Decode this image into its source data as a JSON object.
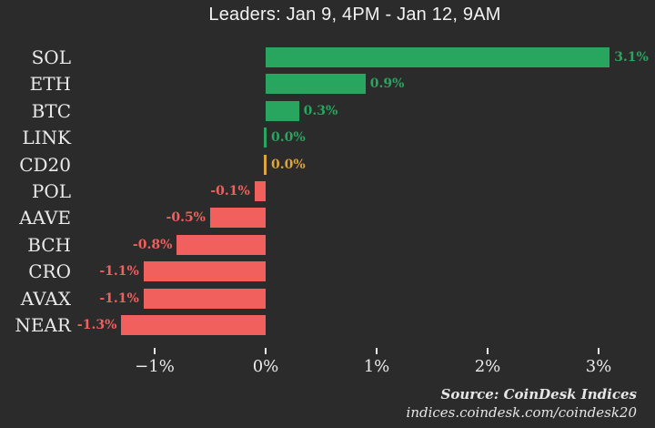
{
  "header": {
    "title": "Leaders: Jan 9, 4PM - Jan 12, 9AM"
  },
  "source": {
    "line1": "Source: CoinDesk Indices",
    "line2": "indices.coindesk.com/coindesk20"
  },
  "colors": {
    "background": "#2b2b2b",
    "green": "#28a55e",
    "red": "#f2605e",
    "orange": "#dda43c",
    "text": "#eaeaea"
  },
  "chart_data": {
    "type": "bar",
    "orientation": "horizontal",
    "title": "Leaders: Jan 9, 4PM - Jan 12, 9AM",
    "categories": [
      "SOL",
      "ETH",
      "BTC",
      "LINK",
      "CD20",
      "POL",
      "AAVE",
      "BCH",
      "CRO",
      "AVAX",
      "NEAR"
    ],
    "values": [
      3.1,
      0.9,
      0.3,
      0.0,
      0.0,
      -0.1,
      -0.5,
      -0.8,
      -1.1,
      -1.1,
      -1.3
    ],
    "value_labels": [
      "3.1%",
      "0.9%",
      "0.3%",
      "0.0%",
      "0.0%",
      "-0.1%",
      "-0.5%",
      "-0.8%",
      "-1.1%",
      "-1.1%",
      "-1.3%"
    ],
    "bar_colors": [
      "green",
      "green",
      "green",
      "green",
      "orange",
      "red",
      "red",
      "red",
      "red",
      "red",
      "red"
    ],
    "x_ticks": [
      -1,
      0,
      1,
      2,
      3
    ],
    "x_tick_labels": [
      "−1%",
      "0%",
      "1%",
      "2%",
      "3%"
    ],
    "xlim": [
      -1.45,
      3.4
    ],
    "xlabel": "",
    "ylabel": "",
    "grid": false,
    "legend": false
  }
}
